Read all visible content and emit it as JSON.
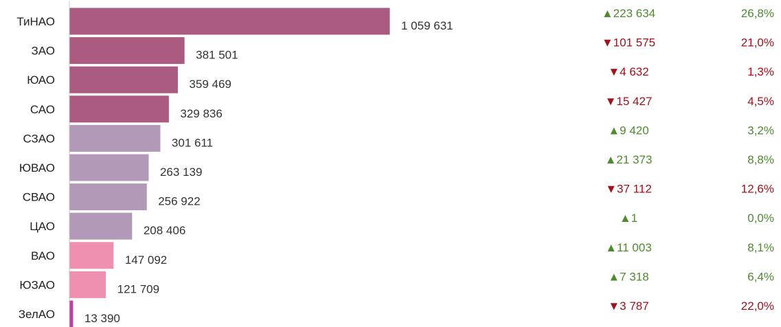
{
  "chart_data": {
    "type": "bar",
    "orientation": "horizontal",
    "title": "",
    "xlabel": "",
    "ylabel": "",
    "categories": [
      "ТиНАО",
      "ЗАО",
      "ЮАО",
      "САО",
      "СЗАО",
      "ЮВАО",
      "СВАО",
      "ЦАО",
      "ВАО",
      "ЮЗАО",
      "ЗелАО"
    ],
    "values": [
      1059631,
      381501,
      359469,
      329836,
      301611,
      263139,
      256922,
      208406,
      147092,
      121709,
      13390
    ],
    "value_labels": [
      "1 059 631",
      "381 501",
      "359 469",
      "329 836",
      "301 611",
      "263 139",
      "256 922",
      "208 406",
      "147 092",
      "121 709",
      "13 390"
    ],
    "bar_colors": [
      "#ab5b7f",
      "#ab5b7f",
      "#ab5b7f",
      "#ab5b7f",
      "#b399b8",
      "#b399b8",
      "#b399b8",
      "#b399b8",
      "#f090b0",
      "#f090b0",
      "#c040a0"
    ],
    "changes": [
      {
        "direction": "up",
        "text": "▲223 634",
        "value": 223634
      },
      {
        "direction": "down",
        "text": "▼101 575",
        "value": -101575
      },
      {
        "direction": "down",
        "text": "▼4 632",
        "value": -4632
      },
      {
        "direction": "down",
        "text": "▼15 427",
        "value": -15427
      },
      {
        "direction": "up",
        "text": "▲9 420",
        "value": 9420
      },
      {
        "direction": "up",
        "text": "▲21 373",
        "value": 21373
      },
      {
        "direction": "down",
        "text": "▼37 112",
        "value": -37112
      },
      {
        "direction": "up",
        "text": "▲1",
        "value": 1
      },
      {
        "direction": "up",
        "text": "▲11 003",
        "value": 11003
      },
      {
        "direction": "up",
        "text": "▲7 318",
        "value": 7318
      },
      {
        "direction": "down",
        "text": "▼3 787",
        "value": -3787
      }
    ],
    "percents": [
      "26,8%",
      "21,0%",
      "1,3%",
      "4,5%",
      "3,2%",
      "8,8%",
      "12,6%",
      "0,0%",
      "8,1%",
      "6,4%",
      "22,0%"
    ],
    "colors": {
      "up": "#4e8a2e",
      "down": "#a3101a",
      "axis": "#c8c8c8"
    },
    "grid": false,
    "legend": "none"
  }
}
